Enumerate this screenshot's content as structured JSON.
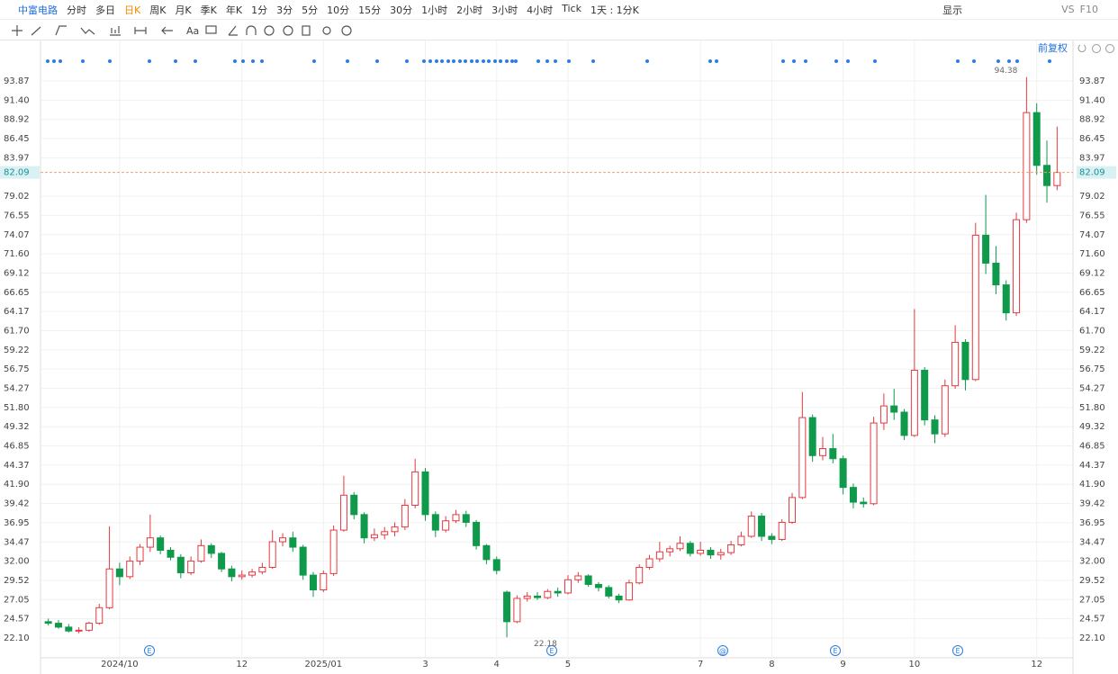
{
  "toolbar": {
    "symbol": "中富电路",
    "periods": [
      "分时",
      "多日",
      "日K",
      "周K",
      "月K",
      "季K",
      "年K",
      "1分",
      "3分",
      "5分",
      "10分",
      "15分",
      "30分",
      "1小时",
      "2小时",
      "3小时",
      "4小时",
      "Tick",
      "1天 : 1分K"
    ],
    "display": "显示",
    "vs": "VS",
    "f10": "F10",
    "text_tool": "Aa",
    "adjust": "前复权"
  },
  "chart_data": {
    "type": "candlestick",
    "categories": [
      null,
      null,
      null,
      null,
      null,
      null,
      null,
      "2024/10",
      null,
      null,
      null,
      null,
      null,
      null,
      null,
      null,
      null,
      null,
      null,
      "12",
      null,
      null,
      null,
      null,
      null,
      null,
      null,
      "2025/01",
      null,
      null,
      null,
      null,
      null,
      null,
      null,
      null,
      null,
      "3",
      null,
      null,
      null,
      null,
      null,
      null,
      "4",
      null,
      null,
      null,
      null,
      null,
      null,
      "5",
      null,
      null,
      null,
      null,
      null,
      null,
      null,
      null,
      null,
      null,
      null,
      null,
      "7",
      null,
      null,
      null,
      null,
      null,
      null,
      "8",
      null,
      null,
      null,
      null,
      null,
      null,
      "9",
      null,
      null,
      null,
      null,
      null,
      null,
      "10",
      null,
      null,
      null,
      null,
      null,
      null,
      null,
      null,
      null,
      null,
      null,
      "12",
      null,
      null
    ],
    "open": [
      24.2,
      24.0,
      23.5,
      23.0,
      23.1,
      24.0,
      26.0,
      31.0,
      30.0,
      32.0,
      33.8,
      35.0,
      33.4,
      32.5,
      30.5,
      32.0,
      34.0,
      33.0,
      31.0,
      30.0,
      30.2,
      30.6,
      31.2,
      34.5,
      35.0,
      33.8,
      30.2,
      28.3,
      30.4,
      36.0,
      40.5,
      38.0,
      35.0,
      35.4,
      35.8,
      36.4,
      39.2,
      43.5,
      38.0,
      36.0,
      37.2,
      38.0,
      37.0,
      34.0,
      32.2,
      28.0,
      24.2,
      27.2,
      27.5,
      27.3,
      28.1,
      27.9,
      29.6,
      30.1,
      29.0,
      28.6,
      27.5,
      27.0,
      29.2,
      31.2,
      32.3,
      33.2,
      33.6,
      34.3,
      33.0,
      33.4,
      32.8,
      33.1,
      34.1,
      35.2,
      37.8,
      35.2,
      34.8,
      37.0,
      40.2,
      50.5,
      45.6,
      46.5,
      45.2,
      41.5,
      39.6,
      39.4,
      49.8,
      52.0,
      51.2,
      48.2,
      56.6,
      50.2,
      48.4,
      54.6,
      60.2,
      55.4,
      74.0,
      70.4,
      67.6,
      64.0,
      76.0,
      89.8,
      83.0,
      80.4
    ],
    "high": [
      24.6,
      24.4,
      23.9,
      23.5,
      24.2,
      26.5,
      36.5,
      31.8,
      32.6,
      34.2,
      38.0,
      35.3,
      33.8,
      32.9,
      32.6,
      34.8,
      34.3,
      33.2,
      31.4,
      30.8,
      31.0,
      31.8,
      36.0,
      35.6,
      35.8,
      34.1,
      30.6,
      30.8,
      36.6,
      43.0,
      40.9,
      38.3,
      36.2,
      36.4,
      37.0,
      40.0,
      45.2,
      44.0,
      38.4,
      37.8,
      38.6,
      38.5,
      37.3,
      34.2,
      32.6,
      28.2,
      27.6,
      28.0,
      28.0,
      28.4,
      28.6,
      30.2,
      30.6,
      30.3,
      29.3,
      28.9,
      27.8,
      29.6,
      31.6,
      32.8,
      34.5,
      34.0,
      35.2,
      34.6,
      34.5,
      33.8,
      33.6,
      34.6,
      35.8,
      38.4,
      38.2,
      35.6,
      37.4,
      40.8,
      53.8,
      50.9,
      48.0,
      48.4,
      45.6,
      42.0,
      40.2,
      50.6,
      53.6,
      54.2,
      51.6,
      64.5,
      57.0,
      50.8,
      55.4,
      62.4,
      60.6,
      75.6,
      79.2,
      72.6,
      68.2,
      76.9,
      94.38,
      91.0,
      86.2,
      88.0
    ],
    "low": [
      23.7,
      23.3,
      22.8,
      22.7,
      22.9,
      23.8,
      25.8,
      28.9,
      29.7,
      31.5,
      33.2,
      32.9,
      32.1,
      29.8,
      30.2,
      31.8,
      32.4,
      30.6,
      29.4,
      29.6,
      29.9,
      30.3,
      31.0,
      33.9,
      33.2,
      29.6,
      27.4,
      28.0,
      30.1,
      35.8,
      37.4,
      34.3,
      34.6,
      34.8,
      35.2,
      36.0,
      38.8,
      37.2,
      35.1,
      35.7,
      36.9,
      36.4,
      33.5,
      31.6,
      30.3,
      22.18,
      24.0,
      26.8,
      27.0,
      27.1,
      27.4,
      27.7,
      29.2,
      28.7,
      28.1,
      27.2,
      26.6,
      26.9,
      29.0,
      30.9,
      31.9,
      32.6,
      33.3,
      32.6,
      32.7,
      32.3,
      32.2,
      32.8,
      33.9,
      35.0,
      34.6,
      34.2,
      34.6,
      36.8,
      40.0,
      44.8,
      45.0,
      44.6,
      40.6,
      38.8,
      38.9,
      39.2,
      48.9,
      50.2,
      47.6,
      48.0,
      49.5,
      47.2,
      48.0,
      54.2,
      54.0,
      55.2,
      69.0,
      66.4,
      63.0,
      63.6,
      75.6,
      81.8,
      78.2,
      79.8
    ],
    "close": [
      24.0,
      23.5,
      23.0,
      23.1,
      24.0,
      26.0,
      31.0,
      30.0,
      32.0,
      33.8,
      35.0,
      33.4,
      32.5,
      30.5,
      32.0,
      34.0,
      33.0,
      31.0,
      30.0,
      30.2,
      30.6,
      31.2,
      34.5,
      35.0,
      33.8,
      30.2,
      28.3,
      30.4,
      36.0,
      40.5,
      38.0,
      35.0,
      35.4,
      35.8,
      36.4,
      39.2,
      43.5,
      38.0,
      36.0,
      37.2,
      38.0,
      37.0,
      34.0,
      32.2,
      30.8,
      24.2,
      27.2,
      27.5,
      27.3,
      28.1,
      27.9,
      29.6,
      30.1,
      29.0,
      28.6,
      27.5,
      27.0,
      29.2,
      31.2,
      32.3,
      33.2,
      33.6,
      34.3,
      33.0,
      33.4,
      32.8,
      33.1,
      34.1,
      35.2,
      37.8,
      35.2,
      34.8,
      37.0,
      40.2,
      50.5,
      45.6,
      46.5,
      45.2,
      41.5,
      39.6,
      39.4,
      49.8,
      52.0,
      51.2,
      48.2,
      56.6,
      50.2,
      48.4,
      54.6,
      60.2,
      55.4,
      74.0,
      70.4,
      67.6,
      64.0,
      76.0,
      89.8,
      83.0,
      80.4,
      82.09
    ],
    "up_color": "#e5393f",
    "down_color": "#0e9a4a",
    "current_price": 82.09,
    "high_label": 94.38,
    "low_label": 22.18,
    "events": [
      "E",
      "E",
      "@",
      "E",
      "E"
    ],
    "ylim": [
      20.82,
      98.86
    ],
    "yticks": [
      {
        "value": 22.1,
        "label": "22.10"
      },
      24.57,
      27.05,
      29.52,
      {
        "value": 32,
        "label": "32.00"
      },
      34.47,
      36.95,
      39.42,
      {
        "value": 41.9,
        "label": "41.90"
      },
      44.37,
      46.85,
      49.32,
      {
        "value": 51.8,
        "label": "51.80"
      },
      54.27,
      56.75,
      59.22,
      {
        "value": 61.7,
        "label": "61.70"
      },
      64.17,
      66.65,
      69.12,
      {
        "value": 71.6,
        "label": "71.60"
      },
      74.07,
      76.55,
      79.02,
      83.97,
      86.45,
      88.92,
      {
        "value": 91.4,
        "label": "91.40"
      },
      93.87
    ],
    "grid": true
  }
}
